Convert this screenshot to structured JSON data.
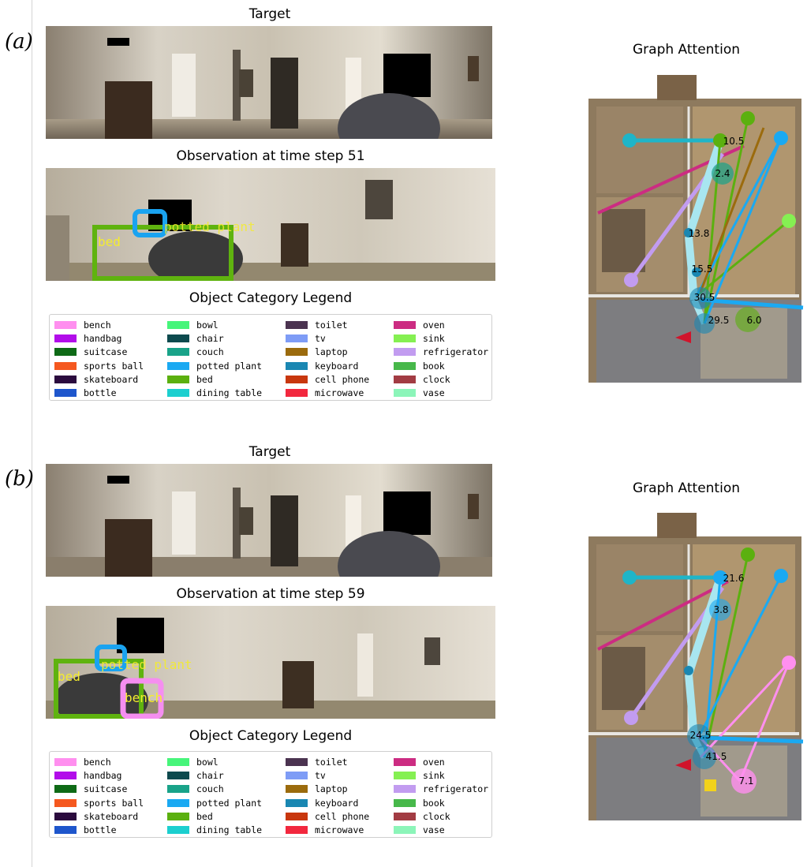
{
  "panels": [
    {
      "id": "a",
      "label": "(a)",
      "target_title": "Target",
      "observation_title": "Observation at time step 51",
      "legend_title": "Object Category Legend",
      "graph_title": "Graph Attention",
      "detections": [
        {
          "label": "bed",
          "color": "#5fb30f"
        },
        {
          "label": "potted plant",
          "color": "#1aa3f0"
        }
      ],
      "attention_values": [
        "10.5",
        "2.4",
        "13.8",
        "15.5",
        "30.5",
        "29.5",
        "6.0"
      ]
    },
    {
      "id": "b",
      "label": "(b)",
      "target_title": "Target",
      "observation_title": "Observation at time step 59",
      "legend_title": "Object Category Legend",
      "graph_title": "Graph Attention",
      "detections": [
        {
          "label": "bed",
          "color": "#5fb30f"
        },
        {
          "label": "potted plant",
          "color": "#1aa3f0"
        },
        {
          "label": "bench",
          "color": "#f58ef0"
        }
      ],
      "attention_values": [
        "21.6",
        "3.8",
        "24.5",
        "41.5",
        "7.1"
      ]
    }
  ],
  "legend": [
    {
      "label": "bench",
      "color": "#ff8fef"
    },
    {
      "label": "handbag",
      "color": "#b20dea"
    },
    {
      "label": "suitcase",
      "color": "#0e6a16"
    },
    {
      "label": "sports ball",
      "color": "#f5581f"
    },
    {
      "label": "skateboard",
      "color": "#2b0b3e"
    },
    {
      "label": "bottle",
      "color": "#1e56cc"
    },
    {
      "label": "bowl",
      "color": "#46f57a"
    },
    {
      "label": "chair",
      "color": "#0d4a4e"
    },
    {
      "label": "couch",
      "color": "#19a389"
    },
    {
      "label": "potted plant",
      "color": "#1aa9f2"
    },
    {
      "label": "bed",
      "color": "#5bb00f"
    },
    {
      "label": "dining table",
      "color": "#1ccfcf"
    },
    {
      "label": "toilet",
      "color": "#4b3350"
    },
    {
      "label": "tv",
      "color": "#7e9cf6"
    },
    {
      "label": "laptop",
      "color": "#9b6b0d"
    },
    {
      "label": "keyboard",
      "color": "#1a87b2"
    },
    {
      "label": "cell phone",
      "color": "#c8370e"
    },
    {
      "label": "microwave",
      "color": "#f2283e"
    },
    {
      "label": "oven",
      "color": "#cc2c82"
    },
    {
      "label": "sink",
      "color": "#85f052"
    },
    {
      "label": "refrigerator",
      "color": "#c29cf0"
    },
    {
      "label": "book",
      "color": "#47b84a"
    },
    {
      "label": "clock",
      "color": "#a23c43"
    },
    {
      "label": "vase",
      "color": "#8cf5b9"
    }
  ]
}
